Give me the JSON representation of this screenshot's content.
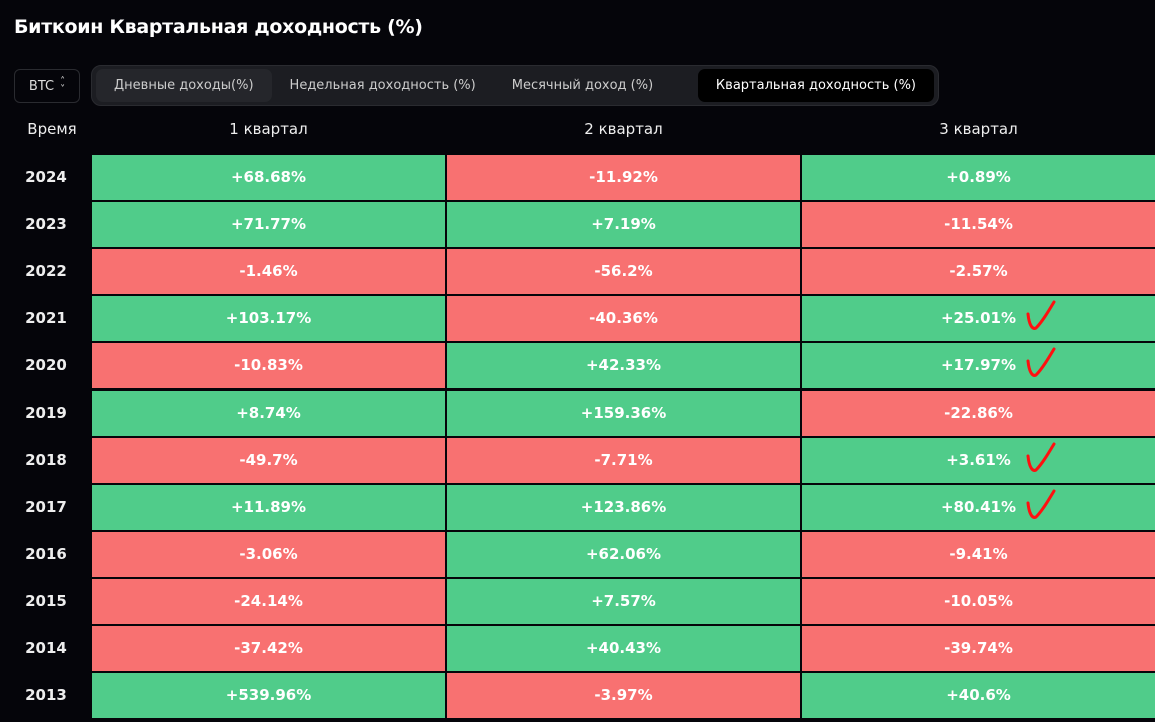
{
  "title": "Биткоин Квартальная доходность (%)",
  "asset_select": {
    "value": "BTC",
    "icon": "updown-chevron-icon"
  },
  "tabs": [
    {
      "label": "Дневные доходы(%)"
    },
    {
      "label": "Недельная доходность (%)"
    },
    {
      "label": "Месячный доход (%)"
    },
    {
      "label": "Квартальная доходность (%)",
      "active": true
    }
  ],
  "table": {
    "headers": [
      "Время",
      "1 квартал",
      "2 квартал",
      "3 квартал"
    ],
    "colors": {
      "positive": "#50cc8a",
      "negative": "#f87171",
      "annotation": "#ff1010"
    },
    "rows": [
      {
        "year": "2024",
        "q": [
          "+68.68%",
          "-11.92%",
          "+0.89%"
        ]
      },
      {
        "year": "2023",
        "q": [
          "+71.77%",
          "+7.19%",
          "-11.54%"
        ]
      },
      {
        "year": "2022",
        "q": [
          "-1.46%",
          "-56.2%",
          "-2.57%"
        ]
      },
      {
        "year": "2021",
        "q": [
          "+103.17%",
          "-40.36%",
          "+25.01%"
        ],
        "checked": true
      },
      {
        "year": "2020",
        "q": [
          "-10.83%",
          "+42.33%",
          "+17.97%"
        ],
        "checked": true
      },
      {
        "year": "2019",
        "q": [
          "+8.74%",
          "+159.36%",
          "-22.86%"
        ]
      },
      {
        "year": "2018",
        "q": [
          "-49.7%",
          "-7.71%",
          "+3.61%"
        ],
        "checked": true
      },
      {
        "year": "2017",
        "q": [
          "+11.89%",
          "+123.86%",
          "+80.41%"
        ],
        "checked": true
      },
      {
        "year": "2016",
        "q": [
          "-3.06%",
          "+62.06%",
          "-9.41%"
        ]
      },
      {
        "year": "2015",
        "q": [
          "-24.14%",
          "+7.57%",
          "-10.05%"
        ]
      },
      {
        "year": "2014",
        "q": [
          "-37.42%",
          "+40.43%",
          "-39.74%"
        ]
      },
      {
        "year": "2013",
        "q": [
          "+539.96%",
          "-3.97%",
          "+40.6%"
        ]
      }
    ]
  }
}
